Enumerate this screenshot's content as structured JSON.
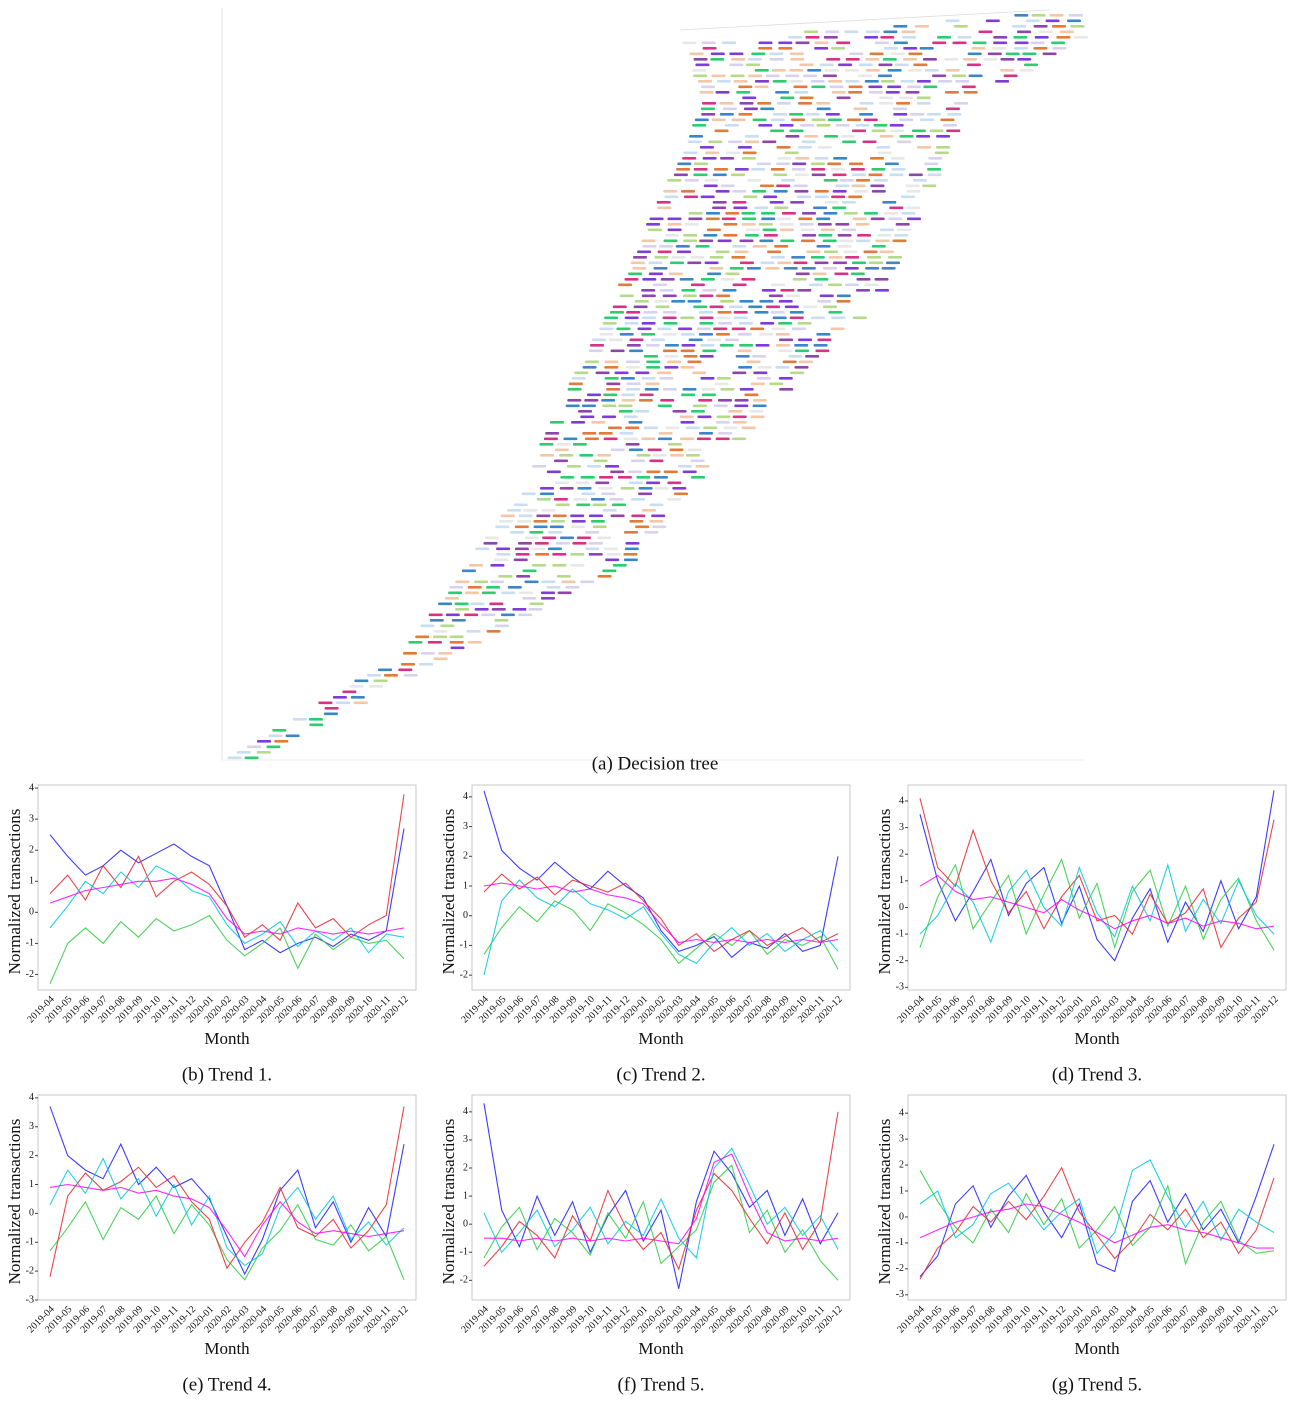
{
  "figure": {
    "caption": "(a) Decision tree"
  },
  "chart_data": [
    {
      "type": "line",
      "caption": "(b) Trend 1.",
      "xlabel": "Month",
      "ylabel": "Normalized transactions",
      "categories": [
        "2019-04",
        "2019-05",
        "2019-06",
        "2019-07",
        "2019-08",
        "2019-09",
        "2019-10",
        "2019-11",
        "2019-12",
        "2020-01",
        "2020-02",
        "2020-03",
        "2020-04",
        "2020-05",
        "2020-06",
        "2020-07",
        "2020-08",
        "2020-09",
        "2020-10",
        "2020-11",
        "2020-12"
      ],
      "ylim": [
        -2.5,
        4.1
      ],
      "yticks": [
        -2,
        -1,
        0,
        1,
        2,
        3,
        4
      ],
      "series": [
        {
          "color": "#1a1aff",
          "values": [
            2.5,
            1.8,
            1.2,
            1.5,
            2.0,
            1.6,
            1.9,
            2.2,
            1.8,
            1.5,
            0.2,
            -1.2,
            -0.9,
            -1.3,
            -1.0,
            -0.8,
            -1.1,
            -0.7,
            -0.9,
            -0.6,
            2.7
          ]
        },
        {
          "color": "#2ecc40",
          "values": [
            -2.3,
            -1.0,
            -0.5,
            -1.0,
            -0.3,
            -0.8,
            -0.2,
            -0.6,
            -0.4,
            -0.1,
            -0.9,
            -1.4,
            -1.0,
            -0.5,
            -1.8,
            -0.7,
            -1.2,
            -0.8,
            -1.0,
            -0.9,
            -1.5
          ]
        },
        {
          "color": "#e8262b",
          "values": [
            0.6,
            1.2,
            0.4,
            1.5,
            0.8,
            1.8,
            0.5,
            1.0,
            1.3,
            0.9,
            0.2,
            -0.8,
            -0.4,
            -0.9,
            0.3,
            -0.5,
            -0.2,
            -0.8,
            -0.4,
            -0.1,
            3.8
          ]
        },
        {
          "color": "#00c8e0",
          "values": [
            -0.5,
            0.2,
            1.0,
            0.6,
            1.3,
            0.8,
            1.5,
            1.2,
            0.7,
            0.5,
            -0.4,
            -1.0,
            -0.7,
            -0.3,
            -1.1,
            -0.6,
            -0.9,
            -0.5,
            -1.3,
            -0.7,
            -0.8
          ]
        },
        {
          "color": "#ff00ff",
          "values": [
            0.3,
            0.5,
            0.7,
            0.8,
            0.9,
            1.0,
            1.0,
            1.1,
            0.9,
            0.6,
            -0.2,
            -0.7,
            -0.6,
            -0.7,
            -0.5,
            -0.6,
            -0.7,
            -0.6,
            -0.7,
            -0.6,
            -0.5
          ]
        }
      ]
    },
    {
      "type": "line",
      "caption": "(c) Trend 2.",
      "xlabel": "Month",
      "ylabel": "Normalized transactions",
      "categories": [
        "2019-04",
        "2019-05",
        "2019-06",
        "2019-07",
        "2019-08",
        "2019-09",
        "2019-10",
        "2019-11",
        "2019-12",
        "2020-01",
        "2020-02",
        "2020-03",
        "2020-04",
        "2020-05",
        "2020-06",
        "2020-07",
        "2020-08",
        "2020-09",
        "2020-10",
        "2020-11",
        "2020-12"
      ],
      "ylim": [
        -2.5,
        4.4
      ],
      "yticks": [
        -2,
        -1,
        0,
        1,
        2,
        3,
        4
      ],
      "series": [
        {
          "color": "#1a1aff",
          "values": [
            4.2,
            2.2,
            1.6,
            1.2,
            1.8,
            1.3,
            0.9,
            1.5,
            1.0,
            0.6,
            -0.5,
            -1.2,
            -1.0,
            -0.7,
            -1.4,
            -0.9,
            -1.1,
            -0.6,
            -1.2,
            -1.0,
            2.0
          ]
        },
        {
          "color": "#2ecc40",
          "values": [
            -1.3,
            -0.4,
            0.3,
            -0.2,
            0.5,
            0.2,
            -0.5,
            0.4,
            0.1,
            -0.3,
            -0.8,
            -1.6,
            -1.1,
            -0.6,
            -1.0,
            -0.5,
            -1.3,
            -0.8,
            -1.0,
            -0.7,
            -1.8
          ]
        },
        {
          "color": "#e8262b",
          "values": [
            0.8,
            1.4,
            0.9,
            1.3,
            0.7,
            1.2,
            1.0,
            0.8,
            1.1,
            0.5,
            -0.1,
            -1.0,
            -0.6,
            -1.2,
            -0.8,
            -0.5,
            -1.0,
            -0.7,
            -0.4,
            -0.9,
            -0.6
          ]
        },
        {
          "color": "#00c8e0",
          "values": [
            -2.0,
            0.5,
            1.2,
            0.6,
            0.3,
            0.9,
            0.4,
            0.2,
            -0.1,
            0.3,
            -0.6,
            -1.3,
            -1.6,
            -0.9,
            -0.4,
            -1.0,
            -0.6,
            -1.2,
            -0.8,
            -0.5,
            -1.2
          ]
        },
        {
          "color": "#ff00ff",
          "values": [
            1.0,
            1.1,
            1.0,
            0.9,
            1.0,
            0.8,
            0.9,
            0.7,
            0.6,
            0.4,
            -0.3,
            -0.9,
            -0.8,
            -0.9,
            -0.8,
            -0.9,
            -0.8,
            -0.9,
            -0.8,
            -0.9,
            -0.8
          ]
        }
      ]
    },
    {
      "type": "line",
      "caption": "(d) Trend 3.",
      "xlabel": "Month",
      "ylabel": "Normalized transactions",
      "categories": [
        "2019-04",
        "2019-05",
        "2019-06",
        "2019-07",
        "2019-08",
        "2019-09",
        "2019-10",
        "2019-11",
        "2019-12",
        "2020-01",
        "2020-02",
        "2020-03",
        "2020-04",
        "2020-05",
        "2020-06",
        "2020-07",
        "2020-08",
        "2020-09",
        "2020-10",
        "2020-11",
        "2020-12"
      ],
      "ylim": [
        -3.1,
        4.6
      ],
      "yticks": [
        -3,
        -2,
        -1,
        0,
        1,
        2,
        3,
        4
      ],
      "series": [
        {
          "color": "#1a1aff",
          "values": [
            3.5,
            1.0,
            -0.5,
            0.6,
            1.8,
            -0.3,
            0.9,
            1.5,
            -0.6,
            0.8,
            -1.2,
            -2.0,
            -0.4,
            0.7,
            -1.3,
            0.2,
            -0.9,
            1.0,
            -0.8,
            0.4,
            4.4
          ]
        },
        {
          "color": "#2ecc40",
          "values": [
            -1.5,
            0.4,
            1.6,
            -0.8,
            0.2,
            1.2,
            -1.0,
            0.5,
            1.8,
            -0.4,
            0.9,
            -1.5,
            0.6,
            1.4,
            -0.7,
            0.8,
            -1.2,
            0.3,
            1.1,
            -0.5,
            -1.6
          ]
        },
        {
          "color": "#e8262b",
          "values": [
            4.1,
            1.5,
            0.8,
            2.9,
            1.0,
            -0.2,
            0.6,
            -0.8,
            0.4,
            1.2,
            -0.5,
            -0.3,
            -1.0,
            0.5,
            -0.6,
            -0.2,
            0.7,
            -1.5,
            -0.4,
            0.2,
            3.3
          ]
        },
        {
          "color": "#00c8e0",
          "values": [
            -1.0,
            -0.3,
            0.9,
            0.2,
            -1.3,
            0.6,
            1.4,
            0.0,
            -0.7,
            1.5,
            -0.2,
            -1.1,
            0.8,
            -0.5,
            1.6,
            -0.9,
            0.3,
            -0.6,
            1.0,
            -0.3,
            -1.0
          ]
        },
        {
          "color": "#ff00ff",
          "values": [
            0.8,
            1.2,
            0.6,
            0.3,
            0.4,
            0.2,
            0.0,
            -0.2,
            0.3,
            -0.1,
            -0.4,
            -0.8,
            -0.5,
            -0.3,
            -0.6,
            -0.4,
            -0.7,
            -0.5,
            -0.6,
            -0.8,
            -0.7
          ]
        }
      ]
    },
    {
      "type": "line",
      "caption": "(e) Trend 4.",
      "xlabel": "Month",
      "ylabel": "Normalized transactions",
      "categories": [
        "2019-04",
        "2019-05",
        "2019-06",
        "2019-07",
        "2019-08",
        "2019-09",
        "2019-10",
        "2019-11",
        "2019-12",
        "2020-01",
        "2020-02",
        "2020-03",
        "2020-04",
        "2020-05",
        "2020-06",
        "2020-07",
        "2020-08",
        "2020-09",
        "2020-10",
        "2020-11",
        "2020-12"
      ],
      "ylim": [
        -3.0,
        4.1
      ],
      "yticks": [
        -3,
        -2,
        -1,
        0,
        1,
        2,
        3,
        4
      ],
      "series": [
        {
          "color": "#1a1aff",
          "values": [
            3.7,
            2.0,
            1.5,
            1.2,
            2.4,
            1.0,
            1.6,
            0.9,
            1.2,
            0.5,
            -0.8,
            -2.1,
            -0.9,
            0.8,
            1.5,
            -0.5,
            0.4,
            -1.0,
            0.2,
            -0.8,
            2.4
          ]
        },
        {
          "color": "#2ecc40",
          "values": [
            -1.3,
            -0.5,
            0.4,
            -0.9,
            0.2,
            -0.2,
            0.6,
            -0.7,
            0.3,
            -0.4,
            -1.6,
            -2.3,
            -1.2,
            -0.6,
            0.3,
            -0.9,
            -1.1,
            -0.4,
            -1.3,
            -0.8,
            -2.3
          ]
        },
        {
          "color": "#e8262b",
          "values": [
            -2.2,
            0.6,
            1.4,
            0.8,
            1.1,
            1.6,
            0.9,
            1.3,
            0.4,
            -0.2,
            -1.9,
            -1.0,
            -0.3,
            0.9,
            -0.5,
            -0.8,
            -0.2,
            -1.2,
            -0.6,
            0.3,
            3.7
          ]
        },
        {
          "color": "#00c8e0",
          "values": [
            0.3,
            1.5,
            0.7,
            1.9,
            0.5,
            1.2,
            -0.1,
            1.0,
            -0.4,
            0.6,
            -1.2,
            -1.8,
            -1.4,
            0.2,
            0.9,
            -0.2,
            0.6,
            -0.9,
            -0.3,
            -1.1,
            -0.5
          ]
        },
        {
          "color": "#ff00ff",
          "values": [
            0.9,
            1.0,
            0.9,
            0.8,
            0.9,
            0.7,
            0.8,
            0.6,
            0.5,
            0.2,
            -0.6,
            -1.5,
            -0.4,
            0.4,
            -0.3,
            -0.7,
            -0.6,
            -0.7,
            -0.8,
            -0.7,
            -0.6
          ]
        }
      ]
    },
    {
      "type": "line",
      "caption": "(f) Trend 5.",
      "xlabel": "Month",
      "ylabel": "Normalized transactions",
      "categories": [
        "2019-04",
        "2019-05",
        "2019-06",
        "2019-07",
        "2019-08",
        "2019-09",
        "2019-10",
        "2019-11",
        "2019-12",
        "2020-01",
        "2020-02",
        "2020-03",
        "2020-04",
        "2020-05",
        "2020-06",
        "2020-07",
        "2020-08",
        "2020-09",
        "2020-10",
        "2020-11",
        "2020-12"
      ],
      "ylim": [
        -2.7,
        4.6
      ],
      "yticks": [
        -2,
        -1,
        0,
        1,
        2,
        3,
        4
      ],
      "series": [
        {
          "color": "#1a1aff",
          "values": [
            4.3,
            0.5,
            -0.8,
            1.0,
            -0.4,
            0.8,
            -1.0,
            0.3,
            1.2,
            -0.6,
            0.5,
            -2.3,
            0.8,
            2.6,
            1.8,
            0.6,
            1.2,
            -0.4,
            0.9,
            -0.7,
            0.4
          ]
        },
        {
          "color": "#2ecc40",
          "values": [
            -1.2,
            -0.1,
            0.6,
            -0.9,
            0.2,
            -0.3,
            -1.1,
            0.4,
            -0.5,
            0.8,
            -1.4,
            -0.8,
            -0.2,
            1.5,
            2.1,
            -0.3,
            0.5,
            -1.0,
            -0.2,
            -1.3,
            -2.0
          ]
        },
        {
          "color": "#e8262b",
          "values": [
            -1.5,
            -0.8,
            0.1,
            -0.4,
            -1.2,
            0.3,
            -0.6,
            1.2,
            -0.1,
            -0.9,
            -0.3,
            -1.6,
            0.5,
            1.8,
            1.2,
            0.2,
            -0.7,
            0.4,
            -0.9,
            0.1,
            4.0
          ]
        },
        {
          "color": "#00c8e0",
          "values": [
            0.4,
            -1.0,
            -0.3,
            0.5,
            -0.8,
            -0.2,
            0.6,
            -0.7,
            0.1,
            -0.4,
            0.9,
            -0.5,
            -1.2,
            2.0,
            2.7,
            1.4,
            0.0,
            0.6,
            -0.4,
            0.3,
            -0.9
          ]
        },
        {
          "color": "#ff00ff",
          "values": [
            -0.5,
            -0.5,
            -0.6,
            -0.5,
            -0.6,
            -0.5,
            -0.6,
            -0.5,
            -0.6,
            -0.5,
            -0.6,
            -0.7,
            0.2,
            2.2,
            2.5,
            1.0,
            -0.3,
            -0.6,
            -0.5,
            -0.6,
            -0.5
          ]
        }
      ]
    },
    {
      "type": "line",
      "caption": "(g) Trend 5.",
      "xlabel": "Month",
      "ylabel": "Normalized transactions",
      "categories": [
        "2019-04",
        "2019-05",
        "2019-06",
        "2019-07",
        "2019-08",
        "2019-09",
        "2019-10",
        "2019-11",
        "2019-12",
        "2020-01",
        "2020-02",
        "2020-03",
        "2020-04",
        "2020-05",
        "2020-06",
        "2020-07",
        "2020-08",
        "2020-09",
        "2020-10",
        "2020-11",
        "2020-12"
      ],
      "ylim": [
        -3.2,
        4.7
      ],
      "yticks": [
        -3,
        -2,
        -1,
        0,
        1,
        2,
        3,
        4
      ],
      "series": [
        {
          "color": "#1a1aff",
          "values": [
            -2.3,
            -1.5,
            0.5,
            1.2,
            -0.4,
            0.8,
            1.6,
            0.2,
            -0.8,
            0.5,
            -1.8,
            -2.1,
            0.6,
            1.4,
            -0.2,
            0.9,
            -0.5,
            0.3,
            -1.0,
            0.8,
            2.8
          ]
        },
        {
          "color": "#2ecc40",
          "values": [
            1.8,
            0.6,
            -0.4,
            -1.0,
            0.3,
            -0.6,
            0.9,
            -0.3,
            0.7,
            -1.2,
            -0.5,
            0.4,
            -1.1,
            -0.4,
            1.2,
            -1.8,
            -0.2,
            0.6,
            -0.9,
            -1.4,
            -1.3
          ]
        },
        {
          "color": "#e8262b",
          "values": [
            -2.4,
            -1.2,
            -0.6,
            0.4,
            -0.2,
            0.6,
            -0.1,
            0.8,
            1.9,
            0.2,
            -0.7,
            -1.6,
            -0.9,
            0.1,
            -0.5,
            0.3,
            -0.8,
            -0.2,
            -1.4,
            -0.5,
            1.5
          ]
        },
        {
          "color": "#00c8e0",
          "values": [
            0.5,
            1.0,
            -0.8,
            -0.3,
            0.9,
            1.3,
            0.4,
            -0.5,
            0.2,
            0.7,
            -1.4,
            -0.6,
            1.8,
            2.2,
            0.8,
            -0.4,
            0.6,
            -0.9,
            0.3,
            -0.2,
            -0.6
          ]
        },
        {
          "color": "#ff00ff",
          "values": [
            -0.8,
            -0.5,
            -0.2,
            0.0,
            0.2,
            0.3,
            0.5,
            0.4,
            0.1,
            -0.2,
            -0.6,
            -1.0,
            -0.7,
            -0.4,
            -0.3,
            -0.5,
            -0.6,
            -0.8,
            -1.0,
            -1.2,
            -1.2
          ]
        }
      ]
    }
  ]
}
